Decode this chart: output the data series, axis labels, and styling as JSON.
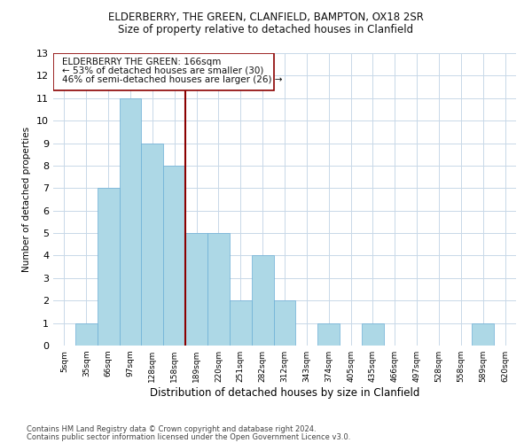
{
  "title1": "ELDERBERRY, THE GREEN, CLANFIELD, BAMPTON, OX18 2SR",
  "title2": "Size of property relative to detached houses in Clanfield",
  "xlabel": "Distribution of detached houses by size in Clanfield",
  "ylabel": "Number of detached properties",
  "categories": [
    "5sqm",
    "35sqm",
    "66sqm",
    "97sqm",
    "128sqm",
    "158sqm",
    "189sqm",
    "220sqm",
    "251sqm",
    "282sqm",
    "312sqm",
    "343sqm",
    "374sqm",
    "405sqm",
    "435sqm",
    "466sqm",
    "497sqm",
    "528sqm",
    "558sqm",
    "589sqm",
    "620sqm"
  ],
  "values": [
    0,
    1,
    7,
    11,
    9,
    8,
    5,
    5,
    2,
    4,
    2,
    0,
    1,
    0,
    1,
    0,
    0,
    0,
    0,
    1,
    0
  ],
  "bar_color": "#add8e6",
  "bar_edgecolor": "#6baed6",
  "highlight_color": "#8b0000",
  "annotation_line1": "ELDERBERRY THE GREEN: 166sqm",
  "annotation_line2": "← 53% of detached houses are smaller (30)",
  "annotation_line3": "46% of semi-detached houses are larger (26) →",
  "vline_position": 5.5,
  "ylim": [
    0,
    13
  ],
  "yticks": [
    0,
    1,
    2,
    3,
    4,
    5,
    6,
    7,
    8,
    9,
    10,
    11,
    12,
    13
  ],
  "footer1": "Contains HM Land Registry data © Crown copyright and database right 2024.",
  "footer2": "Contains public sector information licensed under the Open Government Licence v3.0.",
  "background_color": "#ffffff",
  "grid_color": "#c8d8e8"
}
